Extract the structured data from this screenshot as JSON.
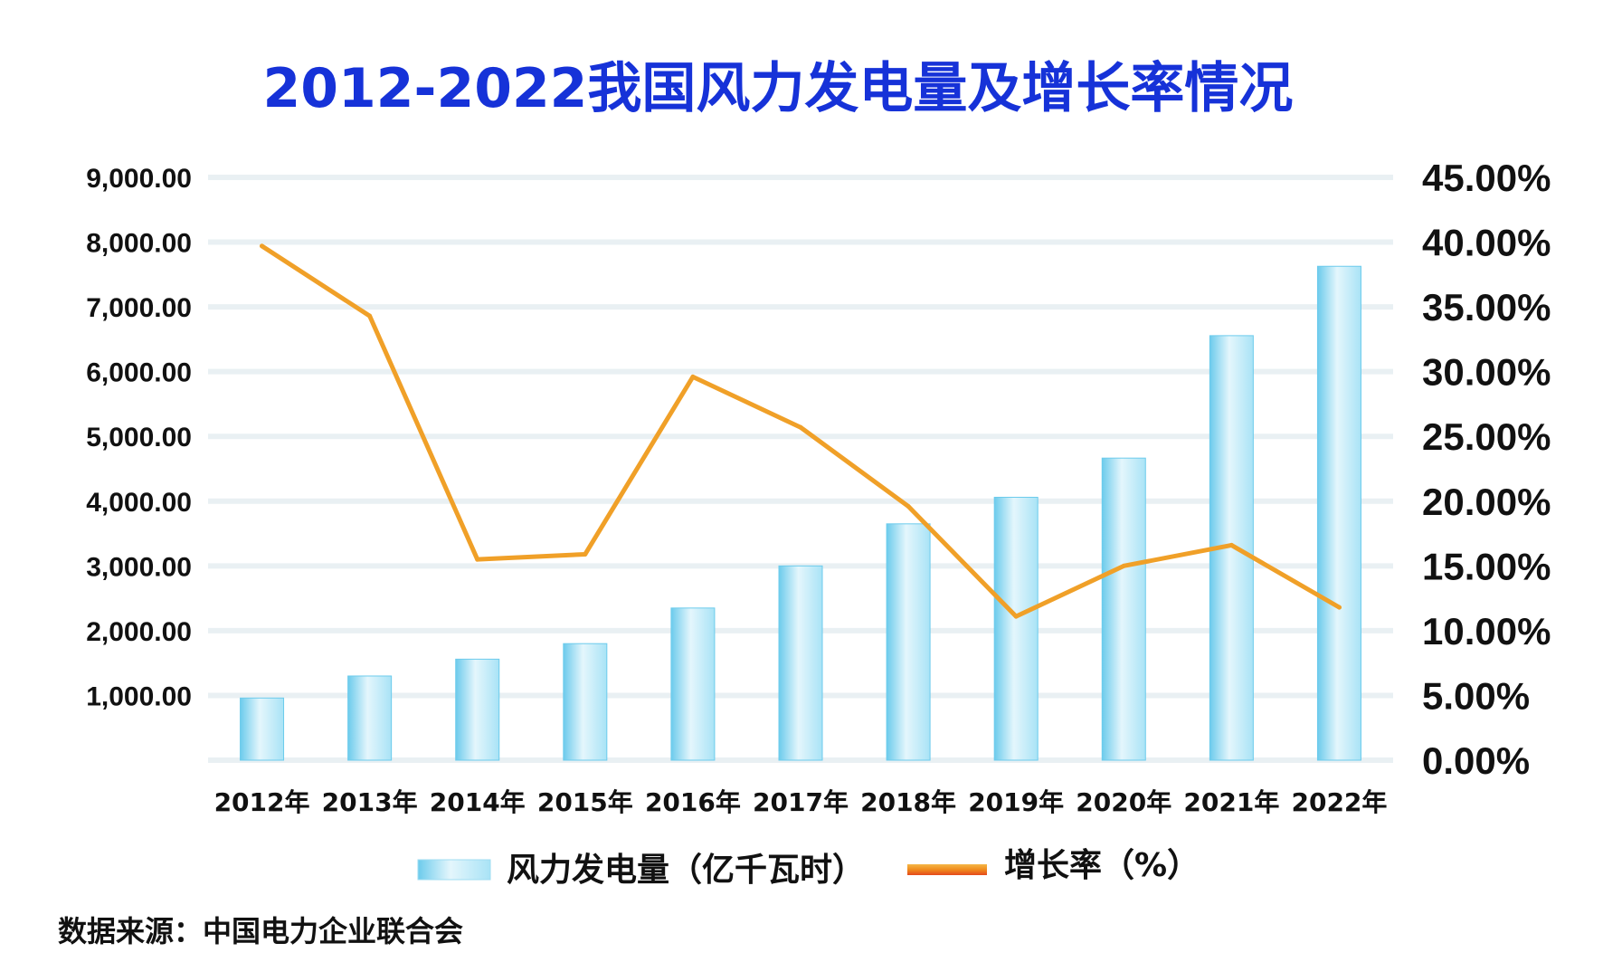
{
  "colors": {
    "title": "#1632d8",
    "bar_light": "#e4f6fc",
    "bar_mid": "#a9e3f6",
    "bar_edge": "#6ccbec",
    "line": "#f0a028",
    "grid": "#e9f0f3"
  },
  "chart_data": {
    "type": "bar",
    "title": "2012-2022我国风力发电量及增长率情况",
    "categories": [
      "2012年",
      "2013年",
      "2014年",
      "2015年",
      "2016年",
      "2017年",
      "2018年",
      "2019年",
      "2020年",
      "2021年",
      "2022年"
    ],
    "series": [
      {
        "name": "风力发电量（亿千瓦时）",
        "type": "bar",
        "axis": "left",
        "values": [
          960,
          1300,
          1560,
          1800,
          2350,
          3000,
          3650,
          4060,
          4665,
          6556,
          7627
        ]
      },
      {
        "name": "增长率（%）",
        "type": "line",
        "axis": "right",
        "values": [
          39.7,
          34.3,
          15.5,
          15.9,
          29.6,
          25.7,
          19.6,
          11.1,
          15.0,
          16.6,
          11.8
        ]
      }
    ],
    "y_left": {
      "ylim": [
        0,
        9000
      ],
      "ticks": [
        1000,
        2000,
        3000,
        4000,
        5000,
        6000,
        7000,
        8000,
        9000
      ],
      "tick_labels": [
        "1,000.00",
        "2,000.00",
        "3,000.00",
        "4,000.00",
        "5,000.00",
        "6,000.00",
        "7,000.00",
        "8,000.00",
        "9,000.00"
      ]
    },
    "y_right": {
      "ylim": [
        0,
        45
      ],
      "ticks": [
        0,
        5,
        10,
        15,
        20,
        25,
        30,
        35,
        40,
        45
      ],
      "tick_labels": [
        "0.00%",
        "5.00%",
        "10.00%",
        "15.00%",
        "20.00%",
        "25.00%",
        "30.00%",
        "35.00%",
        "40.00%",
        "45.00%"
      ]
    },
    "grid": true,
    "legend_position": "bottom",
    "source": "数据来源：中国电力企业联合会"
  }
}
